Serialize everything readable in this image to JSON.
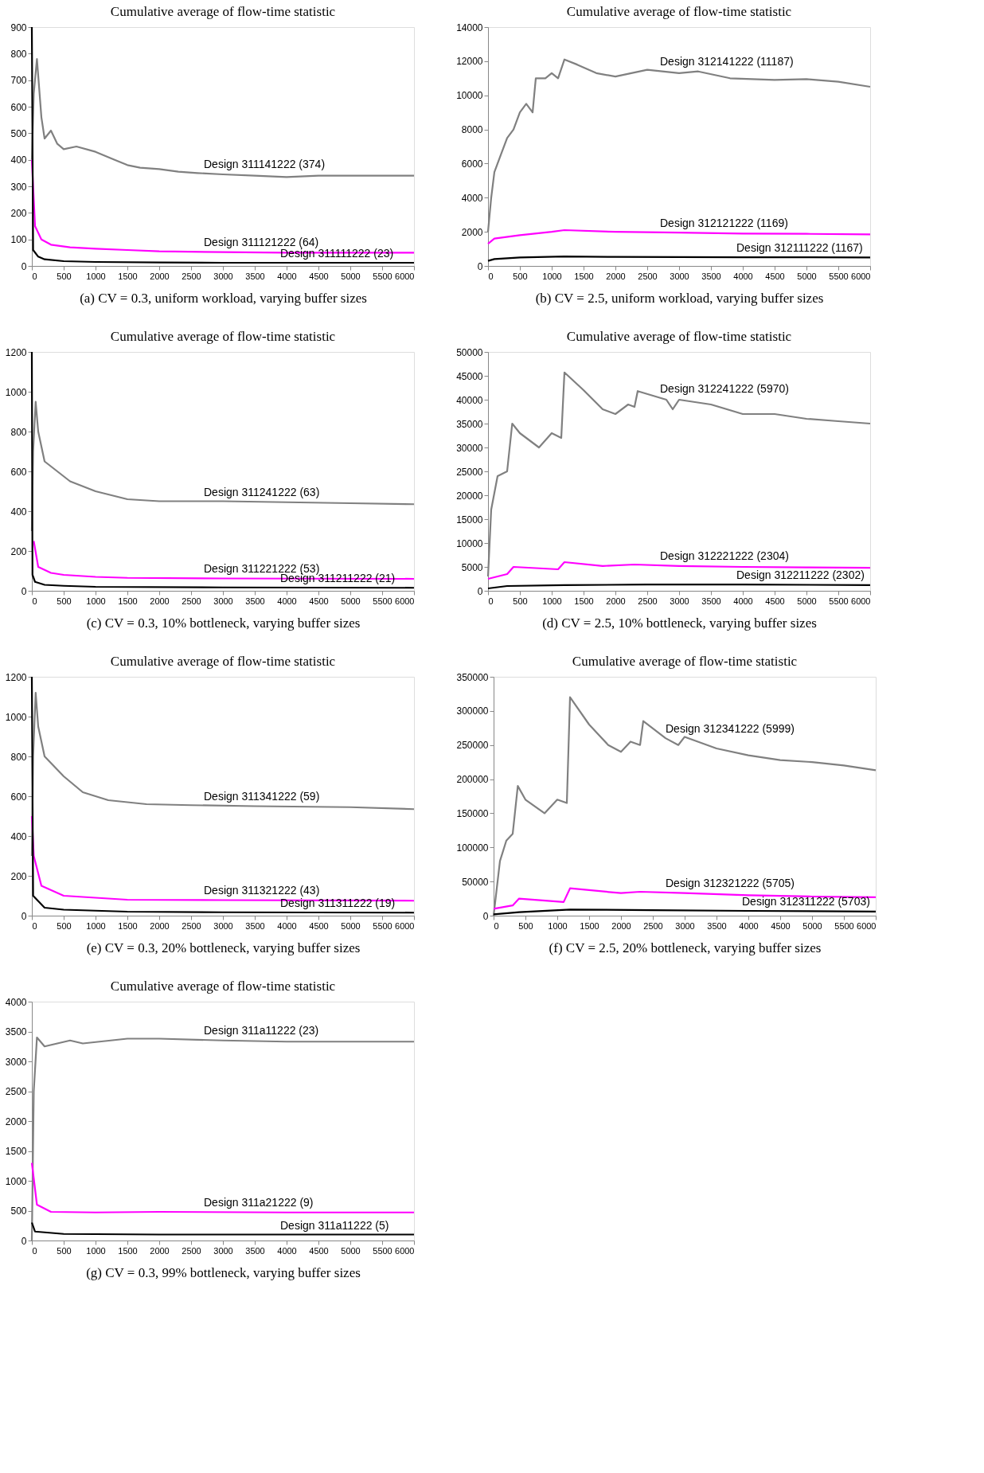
{
  "chart_data": [
    {
      "type": "line",
      "title": "Cumulative average of flow-time statistic",
      "xlabel": "(a) CV = 0.3, uniform workload, varying buffer sizes",
      "xlim": [
        0,
        6000
      ],
      "xticks": [
        0,
        500,
        1000,
        1500,
        2000,
        2500,
        3000,
        3500,
        4000,
        4500,
        5000,
        5500,
        6000
      ],
      "ylim": [
        0,
        900
      ],
      "yticks": [
        0,
        100,
        200,
        300,
        400,
        500,
        600,
        700,
        800,
        900
      ],
      "grid": false,
      "series": [
        {
          "color": "#808080",
          "x": [
            0,
            30,
            80,
            150,
            200,
            300,
            400,
            500,
            700,
            1000,
            1300,
            1500,
            1700,
            2000,
            2300,
            2600,
            3000,
            3500,
            4000,
            4500,
            5000,
            6000
          ],
          "values": [
            400,
            650,
            780,
            560,
            480,
            510,
            460,
            440,
            450,
            430,
            400,
            380,
            370,
            365,
            355,
            350,
            345,
            340,
            335,
            340,
            340,
            340
          ],
          "name": "Design 311141222 (374)"
        },
        {
          "color": "#ff00ff",
          "x": [
            0,
            50,
            150,
            300,
            600,
            1000,
            1500,
            2000,
            3000,
            4000,
            5000,
            6000
          ],
          "values": [
            400,
            150,
            100,
            80,
            70,
            65,
            60,
            55,
            52,
            50,
            50,
            50
          ],
          "name": "Design 311121222 (64)"
        },
        {
          "color": "#000000",
          "x": [
            0,
            20,
            100,
            200,
            500,
            1000,
            2000,
            3000,
            4000,
            6000
          ],
          "values": [
            900,
            60,
            35,
            25,
            18,
            15,
            13,
            12,
            12,
            12
          ],
          "name": "Design 311111222 (23)"
        }
      ]
    },
    {
      "type": "line",
      "title": "Cumulative average of flow-time statistic",
      "xlabel": "(b) CV = 2.5, uniform workload, varying buffer sizes",
      "xlim": [
        0,
        6000
      ],
      "xticks": [
        0,
        500,
        1000,
        1500,
        2000,
        2500,
        3000,
        3500,
        4000,
        4500,
        5000,
        5500,
        6000
      ],
      "ylim": [
        0,
        14000
      ],
      "yticks": [
        0,
        2000,
        4000,
        6000,
        8000,
        10000,
        12000,
        14000
      ],
      "grid": false,
      "series": [
        {
          "color": "#808080",
          "x": [
            0,
            50,
            100,
            200,
            300,
            400,
            500,
            600,
            700,
            750,
            900,
            1000,
            1100,
            1200,
            1400,
            1700,
            2000,
            2500,
            3000,
            3300,
            3800,
            4500,
            5000,
            5500,
            6000
          ],
          "values": [
            2000,
            4000,
            5500,
            6500,
            7500,
            8000,
            9000,
            9500,
            9000,
            11000,
            11000,
            11300,
            11000,
            12100,
            11800,
            11300,
            11100,
            11500,
            11300,
            11400,
            11000,
            10900,
            10950,
            10800,
            10500
          ],
          "name": "Design 312141222 (11187)"
        },
        {
          "color": "#ff00ff",
          "x": [
            0,
            100,
            500,
            1000,
            1200,
            2000,
            3000,
            4000,
            5000,
            6000
          ],
          "values": [
            1300,
            1600,
            1800,
            2000,
            2100,
            2000,
            1950,
            1900,
            1880,
            1850
          ],
          "name": "Design 312121222 (1169)"
        },
        {
          "color": "#000000",
          "x": [
            0,
            100,
            500,
            1200,
            2000,
            3000,
            4000,
            6000
          ],
          "values": [
            300,
            400,
            500,
            550,
            530,
            520,
            510,
            500
          ],
          "name": "Design 312111222 (1167)"
        }
      ]
    },
    {
      "type": "line",
      "title": "Cumulative average of flow-time statistic",
      "xlabel": "(c) CV = 0.3, 10% bottleneck, varying buffer sizes",
      "xlim": [
        0,
        6000
      ],
      "xticks": [
        0,
        500,
        1000,
        1500,
        2000,
        2500,
        3000,
        3500,
        4000,
        4500,
        5000,
        5500,
        6000
      ],
      "ylim": [
        0,
        1200
      ],
      "yticks": [
        0,
        200,
        400,
        600,
        800,
        1000,
        1200
      ],
      "grid": false,
      "series": [
        {
          "color": "#808080",
          "x": [
            0,
            20,
            60,
            100,
            200,
            400,
            600,
            1000,
            1500,
            2000,
            3000,
            4000,
            5000,
            6000
          ],
          "values": [
            300,
            700,
            950,
            800,
            650,
            600,
            550,
            500,
            460,
            450,
            450,
            445,
            440,
            435
          ],
          "name": "Design 311241222 (63)"
        },
        {
          "color": "#ff00ff",
          "x": [
            30,
            100,
            300,
            500,
            1000,
            1500,
            3000,
            6000
          ],
          "values": [
            250,
            120,
            90,
            80,
            70,
            65,
            62,
            60
          ],
          "name": "Design 311221222 (53)"
        },
        {
          "color": "#000000",
          "x": [
            0,
            10,
            50,
            200,
            500,
            1000,
            3000,
            6000
          ],
          "values": [
            1200,
            80,
            45,
            30,
            25,
            20,
            17,
            15
          ],
          "name": "Design 311211222 (21)"
        }
      ]
    },
    {
      "type": "line",
      "title": "Cumulative average of flow-time statistic",
      "xlabel": "(d) CV = 2.5, 10% bottleneck, varying buffer sizes",
      "xlim": [
        0,
        6000
      ],
      "xticks": [
        0,
        500,
        1000,
        1500,
        2000,
        2500,
        3000,
        3500,
        4000,
        4500,
        5000,
        5500,
        6000
      ],
      "ylim": [
        0,
        50000
      ],
      "yticks": [
        0,
        5000,
        10000,
        15000,
        20000,
        25000,
        30000,
        35000,
        40000,
        45000,
        50000
      ],
      "grid": false,
      "series": [
        {
          "color": "#808080",
          "x": [
            0,
            50,
            150,
            300,
            380,
            500,
            800,
            1000,
            1150,
            1200,
            1500,
            1800,
            2000,
            2200,
            2300,
            2350,
            2800,
            2900,
            3000,
            3500,
            4000,
            4500,
            5000,
            5500,
            6000
          ],
          "values": [
            3000,
            17000,
            24000,
            25000,
            35000,
            33000,
            30000,
            33000,
            32000,
            45700,
            42000,
            38000,
            37000,
            39000,
            38500,
            41800,
            40000,
            38000,
            40000,
            39000,
            37000,
            37000,
            36000,
            35500,
            35000
          ],
          "name": "Design 312241222 (5970)"
        },
        {
          "color": "#ff00ff",
          "x": [
            0,
            300,
            400,
            1100,
            1200,
            1800,
            2300,
            3000,
            4000,
            5000,
            6000
          ],
          "values": [
            2500,
            3500,
            5000,
            4500,
            6000,
            5200,
            5500,
            5200,
            5000,
            4900,
            4800
          ],
          "name": "Design 312221222 (2304)"
        },
        {
          "color": "#000000",
          "x": [
            0,
            300,
            1200,
            2500,
            4000,
            6000
          ],
          "values": [
            500,
            1000,
            1200,
            1300,
            1300,
            1200
          ],
          "name": "Design 312211222 (2302)"
        }
      ]
    },
    {
      "type": "line",
      "title": "Cumulative average of flow-time statistic",
      "xlabel": "(e) CV = 0.3, 20% bottleneck, varying buffer sizes",
      "xlim": [
        0,
        6000
      ],
      "xticks": [
        0,
        500,
        1000,
        1500,
        2000,
        2500,
        3000,
        3500,
        4000,
        4500,
        5000,
        5500,
        6000
      ],
      "ylim": [
        0,
        1200
      ],
      "yticks": [
        0,
        200,
        400,
        600,
        800,
        1000,
        1200
      ],
      "grid": false,
      "series": [
        {
          "color": "#808080",
          "x": [
            0,
            20,
            60,
            100,
            200,
            500,
            800,
            1200,
            1800,
            2500,
            3500,
            5000,
            6000
          ],
          "values": [
            300,
            800,
            1120,
            950,
            800,
            700,
            620,
            580,
            560,
            555,
            550,
            545,
            535
          ],
          "name": "Design 311341222 (59)"
        },
        {
          "color": "#ff00ff",
          "x": [
            0,
            30,
            150,
            500,
            1500,
            3000,
            6000
          ],
          "values": [
            500,
            300,
            150,
            100,
            80,
            78,
            75
          ],
          "name": "Design 311321222 (43)"
        },
        {
          "color": "#000000",
          "x": [
            0,
            20,
            200,
            500,
            1500,
            3000,
            6000
          ],
          "values": [
            1200,
            100,
            40,
            30,
            20,
            17,
            15
          ],
          "name": "Design 311311222 (19)"
        }
      ]
    },
    {
      "type": "line",
      "title": "Cumulative average of flow-time statistic",
      "xlabel": "(f) CV = 2.5, 20% bottleneck, varying buffer sizes",
      "xlim": [
        0,
        6000
      ],
      "xticks": [
        0,
        500,
        1000,
        1500,
        2000,
        2500,
        3000,
        3500,
        4000,
        4500,
        5000,
        5500,
        6000
      ],
      "ylim": [
        0,
        350000
      ],
      "yticks": [
        0,
        50000,
        100000,
        150000,
        200000,
        250000,
        300000,
        350000
      ],
      "grid": false,
      "series": [
        {
          "color": "#808080",
          "x": [
            0,
            100,
            200,
            300,
            380,
            500,
            800,
            1000,
            1150,
            1200,
            1500,
            1800,
            2000,
            2150,
            2300,
            2350,
            2700,
            2900,
            3000,
            3500,
            4000,
            4500,
            5000,
            5500,
            6000
          ],
          "values": [
            0,
            80000,
            110000,
            120000,
            190000,
            170000,
            150000,
            170000,
            165000,
            320000,
            280000,
            250000,
            240000,
            255000,
            250000,
            285000,
            260000,
            250000,
            262000,
            245000,
            235000,
            228000,
            225000,
            220000,
            213000
          ],
          "name": "Design 312341222 (5999)"
        },
        {
          "color": "#ff00ff",
          "x": [
            0,
            300,
            400,
            1100,
            1200,
            2000,
            2300,
            3000,
            4000,
            5000,
            6000
          ],
          "values": [
            10000,
            15000,
            25000,
            20000,
            40000,
            33000,
            35000,
            33000,
            30000,
            28000,
            27000
          ],
          "name": "Design 312321222 (5705)"
        },
        {
          "color": "#000000",
          "x": [
            0,
            400,
            1200,
            2500,
            4000,
            6000
          ],
          "values": [
            2000,
            5000,
            9000,
            8000,
            7000,
            6000
          ],
          "name": "Design 312311222 (5703)"
        }
      ]
    },
    {
      "type": "line",
      "title": "Cumulative average of flow-time statistic",
      "xlabel": "(g) CV = 0.3, 99% bottleneck, varying buffer sizes",
      "xlim": [
        0,
        6000
      ],
      "xticks": [
        0,
        500,
        1000,
        1500,
        2000,
        2500,
        3000,
        3500,
        4000,
        4500,
        5000,
        5500,
        6000
      ],
      "ylim": [
        0,
        4000
      ],
      "yticks": [
        0,
        500,
        1000,
        1500,
        2000,
        2500,
        3000,
        3500,
        4000
      ],
      "grid": false,
      "series": [
        {
          "color": "#808080",
          "x": [
            0,
            30,
            80,
            200,
            600,
            800,
            1500,
            2000,
            3000,
            4000,
            5000,
            6000
          ],
          "values": [
            0,
            2500,
            3400,
            3250,
            3350,
            3300,
            3380,
            3380,
            3350,
            3330,
            3330,
            3330
          ],
          "name": "Design 311a11222 (23)"
        },
        {
          "color": "#ff00ff",
          "x": [
            0,
            80,
            300,
            1000,
            2000,
            4000,
            6000
          ],
          "values": [
            1300,
            600,
            480,
            470,
            480,
            470,
            470
          ],
          "name": "Design 311a21222 (9)"
        },
        {
          "color": "#000000",
          "x": [
            0,
            50,
            500,
            2000,
            6000
          ],
          "values": [
            300,
            150,
            110,
            100,
            100
          ],
          "name": "Design 311a11222 (5)"
        }
      ]
    }
  ]
}
